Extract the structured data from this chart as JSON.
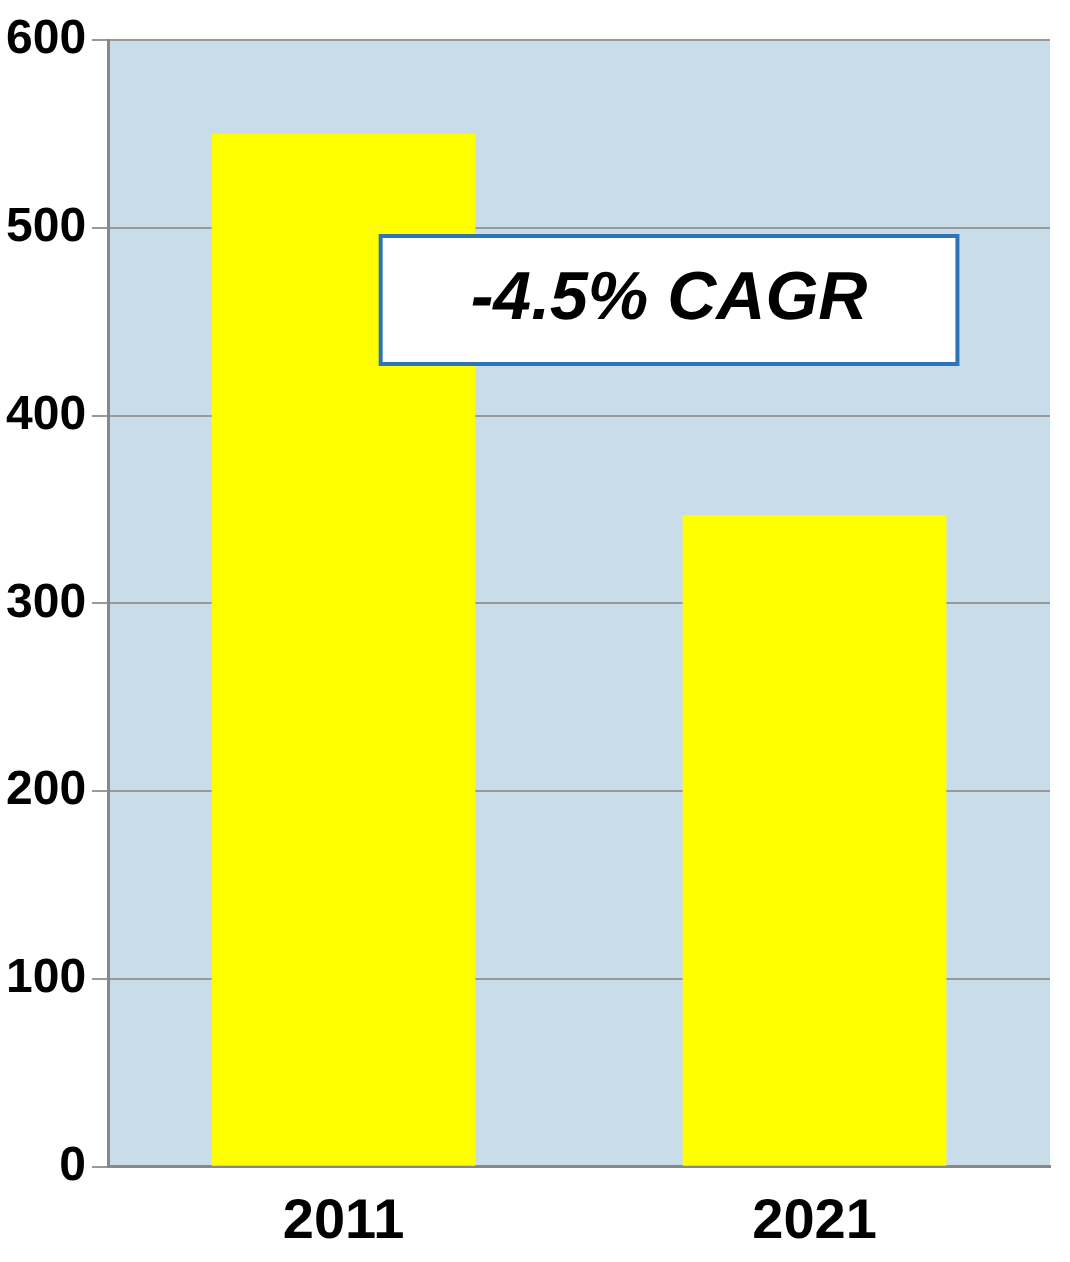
{
  "chart_data": {
    "type": "bar",
    "categories": [
      "2011",
      "2021"
    ],
    "values": [
      550,
      347
    ],
    "color": "#ffff00",
    "ylim": [
      0,
      600
    ],
    "yticks": [
      0,
      100,
      200,
      300,
      400,
      500,
      600
    ],
    "grid": "y",
    "annotations": [
      "-4.5% CAGR"
    ]
  }
}
